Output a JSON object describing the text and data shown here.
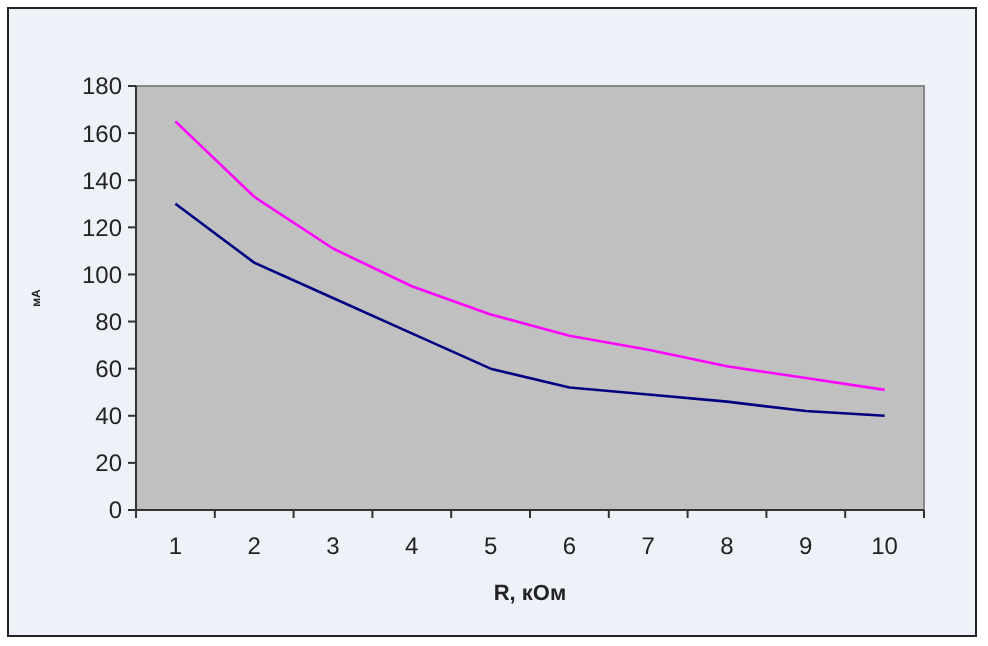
{
  "chart_data": {
    "type": "line",
    "xlabel": "R, кОм",
    "ylabel": "мА",
    "categories": [
      "1",
      "2",
      "3",
      "4",
      "5",
      "6",
      "7",
      "8",
      "9",
      "10"
    ],
    "series": [
      {
        "color": "#ff00ff",
        "values": [
          165,
          133,
          111,
          95,
          83,
          74,
          68,
          61,
          56,
          51
        ]
      },
      {
        "color": "#000080",
        "values": [
          130,
          105,
          90,
          75,
          60,
          52,
          49,
          46,
          42,
          40
        ]
      }
    ],
    "ylim": [
      0,
      180
    ],
    "yticks": [
      0,
      20,
      40,
      60,
      80,
      100,
      120,
      140,
      160,
      180
    ],
    "grid": false,
    "line_style": "solid"
  }
}
